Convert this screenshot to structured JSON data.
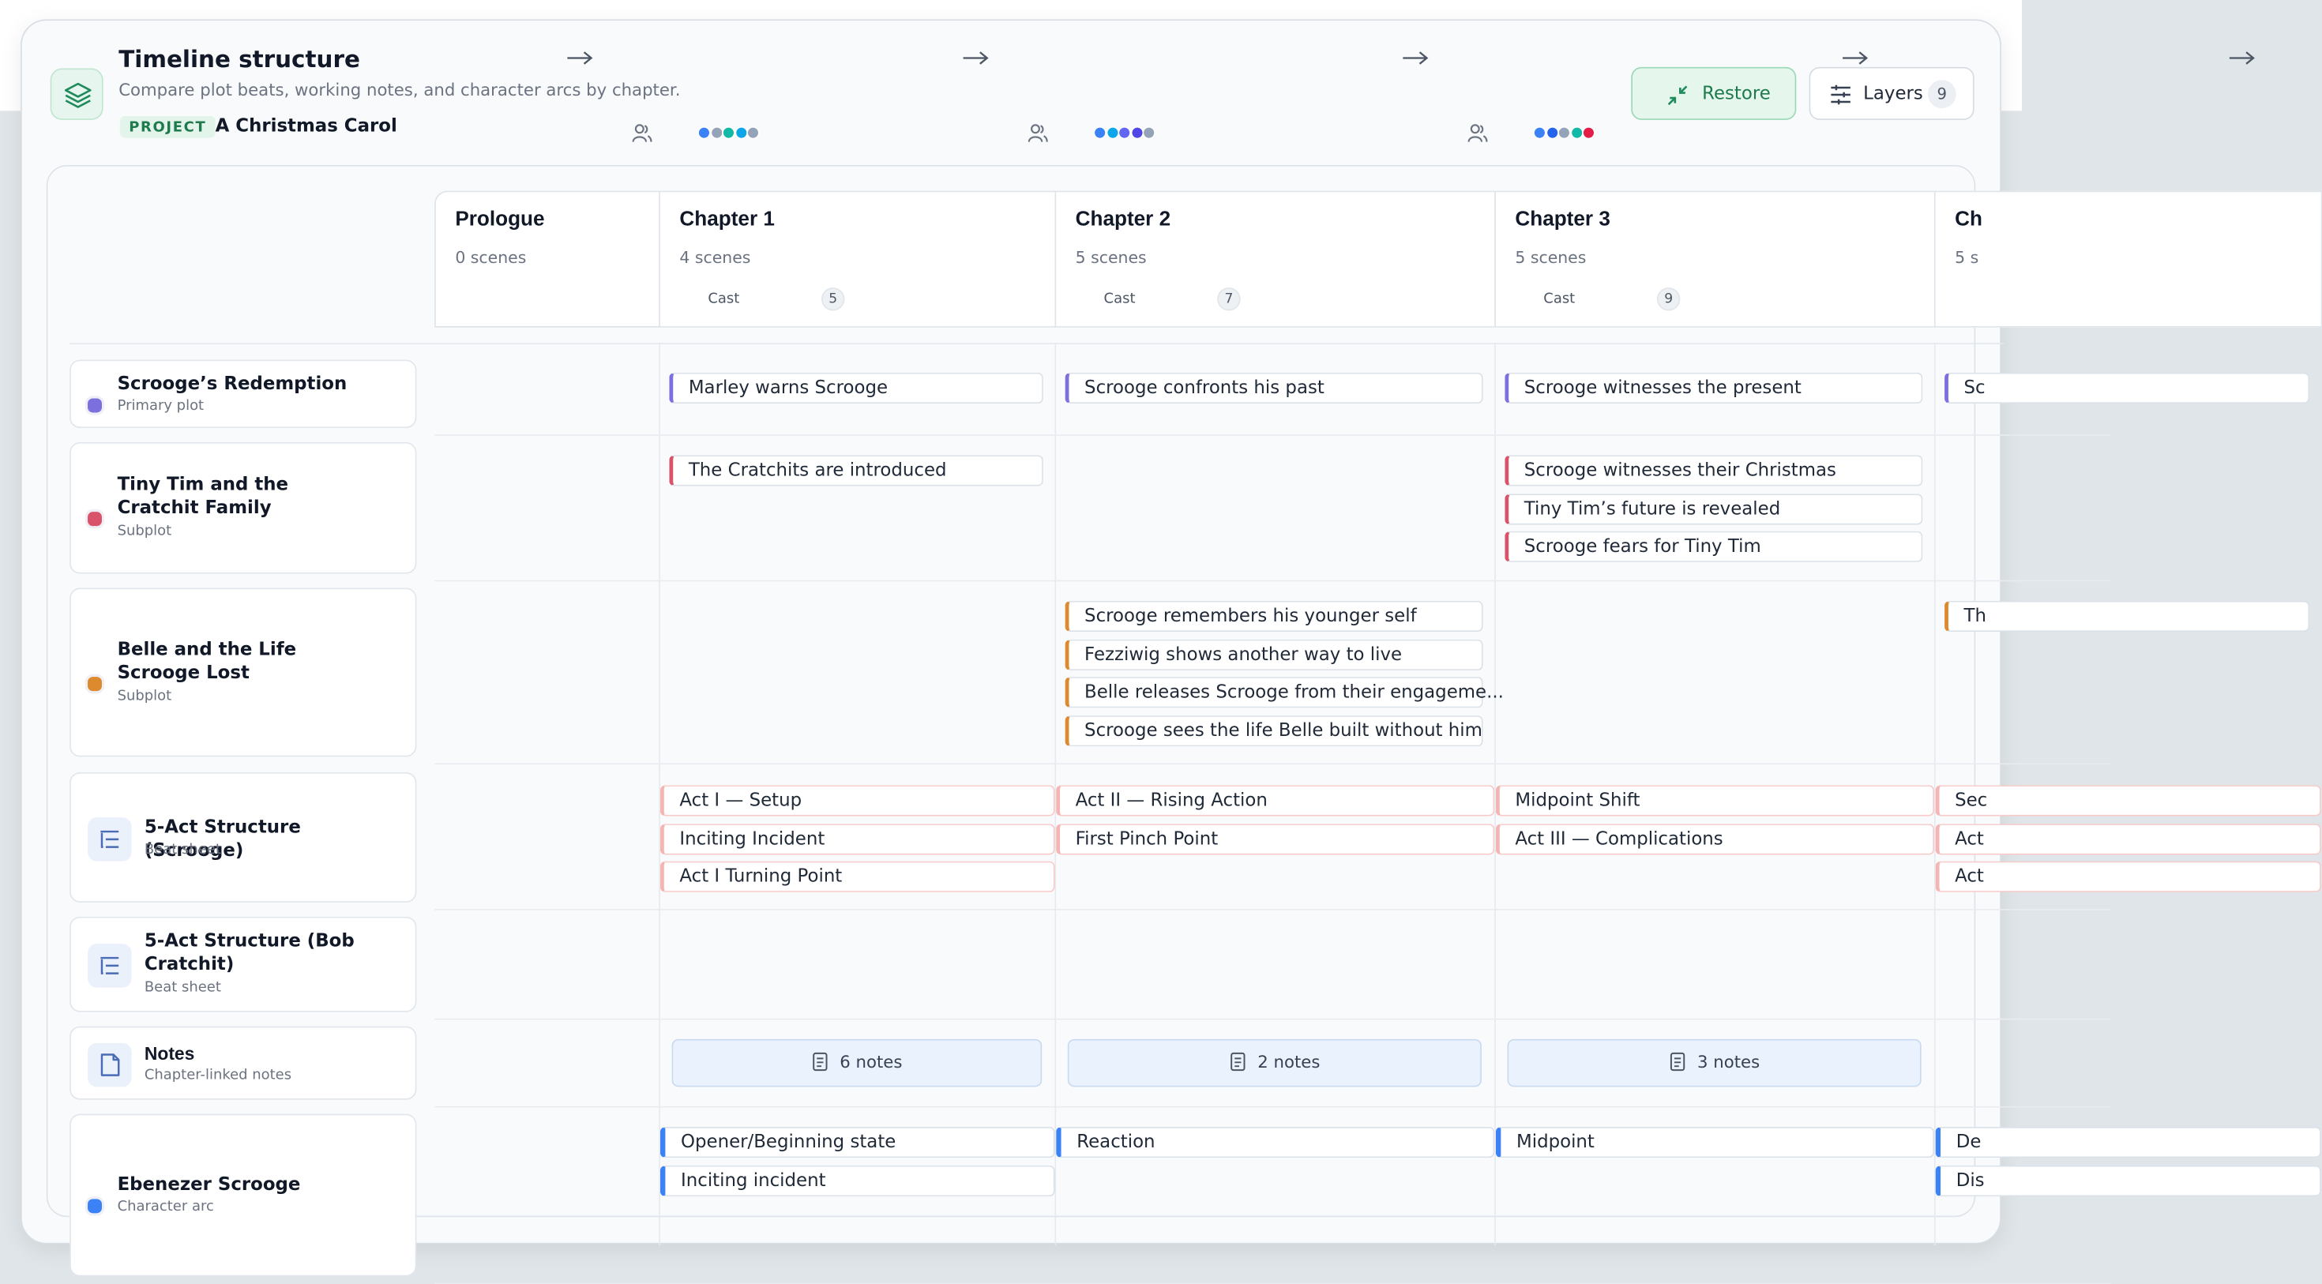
{
  "header": {
    "title": "Timeline structure",
    "subtitle": "Compare plot beats, working notes, and character arcs by chapter.",
    "project_tag": "PROJECT",
    "project_name": "A Christmas Carol"
  },
  "toolbar": {
    "restore": "Restore",
    "layers": "Layers",
    "layers_count": 9
  },
  "chapters": [
    {
      "name": "Prologue",
      "scenes": "0 scenes"
    },
    {
      "name": "Chapter 1",
      "scenes": "4 scenes",
      "cast_label": "Cast",
      "cast_count": 5,
      "cast_colors": [
        "#3b82f6",
        "#94a3b8",
        "#14b8a6",
        "#0ea5e9",
        "#94a3b8"
      ]
    },
    {
      "name": "Chapter 2",
      "scenes": "5 scenes",
      "cast_label": "Cast",
      "cast_count": 7,
      "cast_colors": [
        "#3b82f6",
        "#0ea5e9",
        "#6366f1",
        "#4f46e5",
        "#94a3b8"
      ]
    },
    {
      "name": "Chapter 3",
      "scenes": "5 scenes",
      "cast_label": "Cast",
      "cast_count": 9,
      "cast_colors": [
        "#3b82f6",
        "#2563eb",
        "#94a3b8",
        "#14b8a6",
        "#e11d48"
      ]
    },
    {
      "name": "Ch",
      "scenes": "5 s"
    }
  ],
  "rows": [
    {
      "title": "Scrooge’s Redemption",
      "kind": "Primary plot",
      "style": "plot",
      "color": "#7c6fde",
      "cells": [
        [],
        [
          "Marley warns Scrooge"
        ],
        [
          "Scrooge confronts his past"
        ],
        [
          "Scrooge witnesses the present"
        ],
        [
          "Sc"
        ]
      ]
    },
    {
      "title": "Tiny Tim and the Cratchit Family",
      "kind": "Subplot",
      "style": "plot",
      "color": "#d9546a",
      "cells": [
        [],
        [
          "The Cratchits are introduced"
        ],
        [],
        [
          "Scrooge witnesses their Christmas",
          "Tiny Tim’s future is revealed",
          "Scrooge fears for Tiny Tim"
        ],
        []
      ]
    },
    {
      "title": "Belle and the Life Scrooge Lost",
      "kind": "Subplot",
      "style": "plot",
      "color": "#dd8a2e",
      "cells": [
        [],
        [],
        [
          "Scrooge remembers his younger self",
          "Fezziwig shows another way to live",
          "Belle releases Scrooge from their engageme...",
          "Scrooge sees the life Belle built without him"
        ],
        [],
        [
          "Th"
        ]
      ]
    },
    {
      "title": "5-Act Structure (Scrooge)",
      "kind": "Beat sheet",
      "style": "beat",
      "color": "#f5b5b5",
      "cells": [
        [],
        [
          "Act I — Setup",
          "Inciting Incident",
          "Act I Turning Point"
        ],
        [
          "Act II — Rising Action",
          "First Pinch Point"
        ],
        [
          "Midpoint Shift",
          "Act III — Complications"
        ],
        [
          "Sec",
          "Act",
          "Act"
        ]
      ]
    },
    {
      "title": "5-Act Structure (Bob Cratchit)",
      "kind": "Beat sheet",
      "style": "beat",
      "color": "#f5b5b5",
      "cells": [
        [],
        [],
        [],
        [],
        []
      ]
    },
    {
      "title": "Notes",
      "kind": "Chapter-linked notes",
      "style": "notes",
      "color": "#5b7cc4",
      "cells": [
        [],
        [
          "6 notes"
        ],
        [
          "2 notes"
        ],
        [
          "3 notes"
        ],
        []
      ]
    },
    {
      "title": "Ebenezer Scrooge",
      "kind": "Character arc",
      "style": "arc",
      "color": "#3b82f6",
      "cells": [
        [],
        [
          "Opener/Beginning state",
          "Inciting incident"
        ],
        [
          "Reaction"
        ],
        [
          "Midpoint"
        ],
        [
          "De",
          "Dis"
        ]
      ]
    }
  ]
}
